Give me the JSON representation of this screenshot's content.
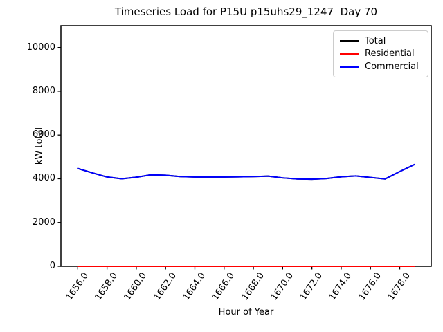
{
  "chart_data": {
    "type": "line",
    "title": "Timeseries Load for P15U p15uhs29_1247  Day 70",
    "xlabel": "Hour of Year",
    "ylabel": "kW total",
    "x": [
      1656,
      1657,
      1658,
      1659,
      1660,
      1661,
      1662,
      1663,
      1664,
      1665,
      1666,
      1667,
      1668,
      1669,
      1670,
      1671,
      1672,
      1673,
      1674,
      1675,
      1676,
      1677,
      1678,
      1679
    ],
    "series": [
      {
        "name": "Total",
        "color": "#000000",
        "values": [
          4470,
          4270,
          4080,
          4000,
          4070,
          4180,
          4160,
          4100,
          4080,
          4080,
          4080,
          4090,
          4100,
          4120,
          4040,
          3990,
          3980,
          4010,
          4090,
          4130,
          4060,
          3990,
          4330,
          4650
        ]
      },
      {
        "name": "Residential",
        "color": "#ff0000",
        "values": [
          0,
          0,
          0,
          0,
          0,
          0,
          0,
          0,
          0,
          0,
          0,
          0,
          0,
          0,
          0,
          0,
          0,
          0,
          0,
          0,
          0,
          0,
          0,
          0
        ]
      },
      {
        "name": "Commercial",
        "color": "#0000ff",
        "values": [
          4470,
          4270,
          4080,
          4000,
          4070,
          4180,
          4160,
          4100,
          4080,
          4080,
          4080,
          4090,
          4100,
          4120,
          4040,
          3990,
          3980,
          4010,
          4090,
          4130,
          4060,
          3990,
          4330,
          4650
        ]
      }
    ],
    "xlim": [
      1654.85,
      1680.15
    ],
    "ylim": [
      0,
      11000
    ],
    "xticks": {
      "values": [
        1656,
        1658,
        1660,
        1662,
        1664,
        1666,
        1668,
        1670,
        1672,
        1674,
        1676,
        1678
      ],
      "labels": [
        "1656.0",
        "1658.0",
        "1660.0",
        "1662.0",
        "1664.0",
        "1666.0",
        "1668.0",
        "1670.0",
        "1672.0",
        "1674.0",
        "1676.0",
        "1678.0"
      ]
    },
    "yticks": {
      "values": [
        0,
        2000,
        4000,
        6000,
        8000,
        10000
      ],
      "labels": [
        "0",
        "2000",
        "4000",
        "6000",
        "8000",
        "10000"
      ]
    },
    "legend": {
      "position": "upper right",
      "entries": [
        "Total",
        "Residential",
        "Commercial"
      ]
    },
    "grid": false,
    "axis_color": "#000000",
    "background_color": "#ffffff"
  }
}
